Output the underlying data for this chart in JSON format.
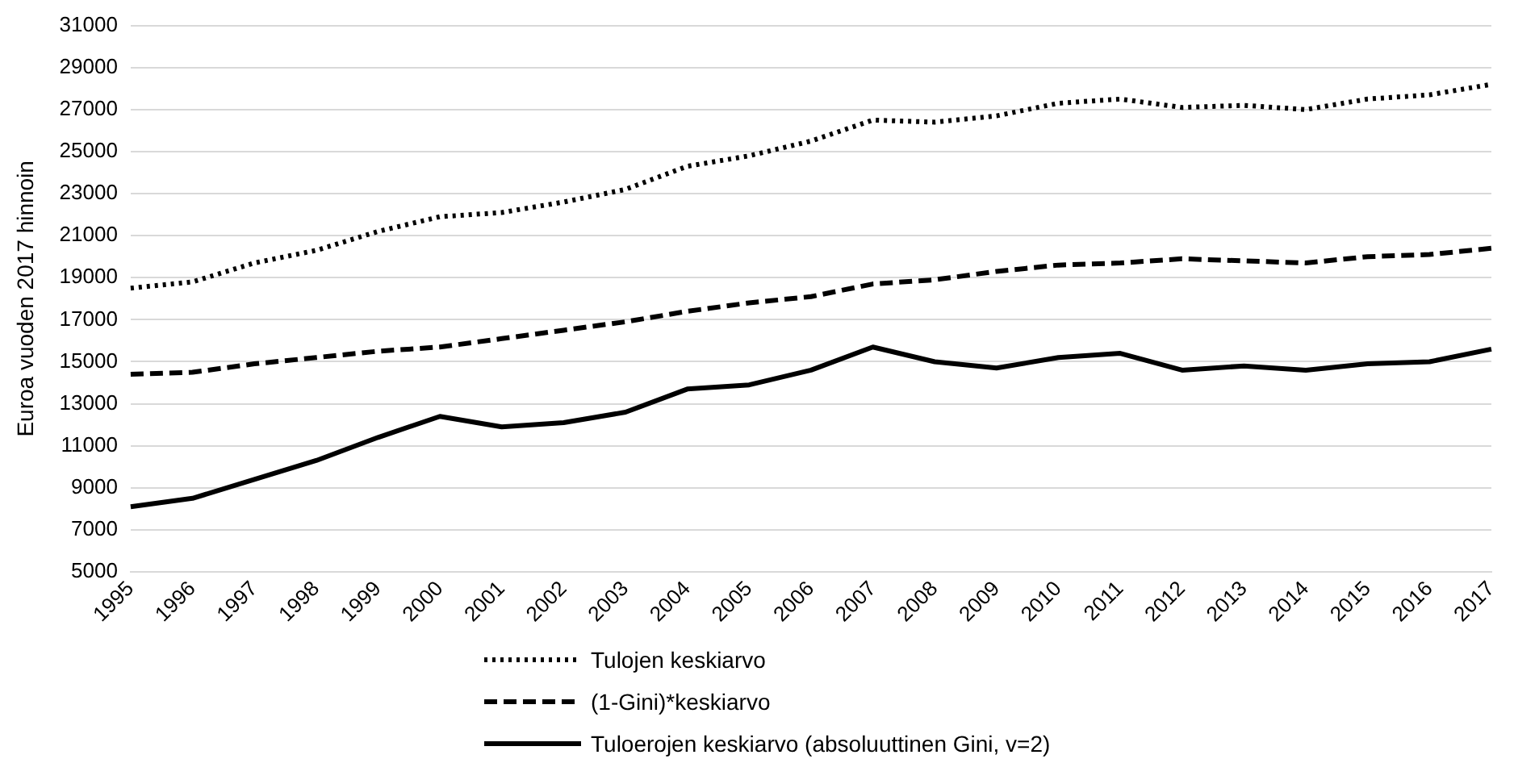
{
  "chart_data": {
    "type": "line",
    "ylabel": "Euroa vuoden 2017 hinnoin",
    "categories": [
      "1995",
      "1996",
      "1997",
      "1998",
      "1999",
      "2000",
      "2001",
      "2002",
      "2003",
      "2004",
      "2005",
      "2006",
      "2007",
      "2008",
      "2009",
      "2010",
      "2011",
      "2012",
      "2013",
      "2014",
      "2015",
      "2016",
      "2017"
    ],
    "series": [
      {
        "name": "Tulojen keskiarvo",
        "color": "#000000",
        "line_style": "dotted",
        "values": [
          18500,
          18800,
          19700,
          20300,
          21200,
          21900,
          22100,
          22600,
          23200,
          24300,
          24800,
          25500,
          26500,
          26400,
          26700,
          27300,
          27500,
          27100,
          27200,
          27000,
          27500,
          27700,
          28200
        ]
      },
      {
        "name": "(1-Gini)*keskiarvo",
        "color": "#000000",
        "line_style": "dashed",
        "values": [
          14400,
          14500,
          14900,
          15200,
          15500,
          15700,
          16100,
          16500,
          16900,
          17400,
          17800,
          18100,
          18700,
          18900,
          19300,
          19600,
          19700,
          19900,
          19800,
          19700,
          20000,
          20100,
          20400
        ]
      },
      {
        "name": "Tuloerojen keskiarvo (absoluuttinen Gini, v=2)",
        "color": "#000000",
        "line_style": "solid",
        "values": [
          8100,
          8500,
          9400,
          10300,
          11400,
          12400,
          11900,
          12100,
          12600,
          13700,
          13900,
          14600,
          15700,
          15000,
          14700,
          15200,
          15400,
          14600,
          14800,
          14600,
          14900,
          15000,
          15600
        ]
      }
    ],
    "ylim": [
      5000,
      31000
    ],
    "yticks": [
      5000,
      7000,
      9000,
      11000,
      13000,
      15000,
      17000,
      19000,
      21000,
      23000,
      25000,
      27000,
      29000,
      31000
    ],
    "grid": "y",
    "legend": "bottom",
    "marker": "none"
  }
}
